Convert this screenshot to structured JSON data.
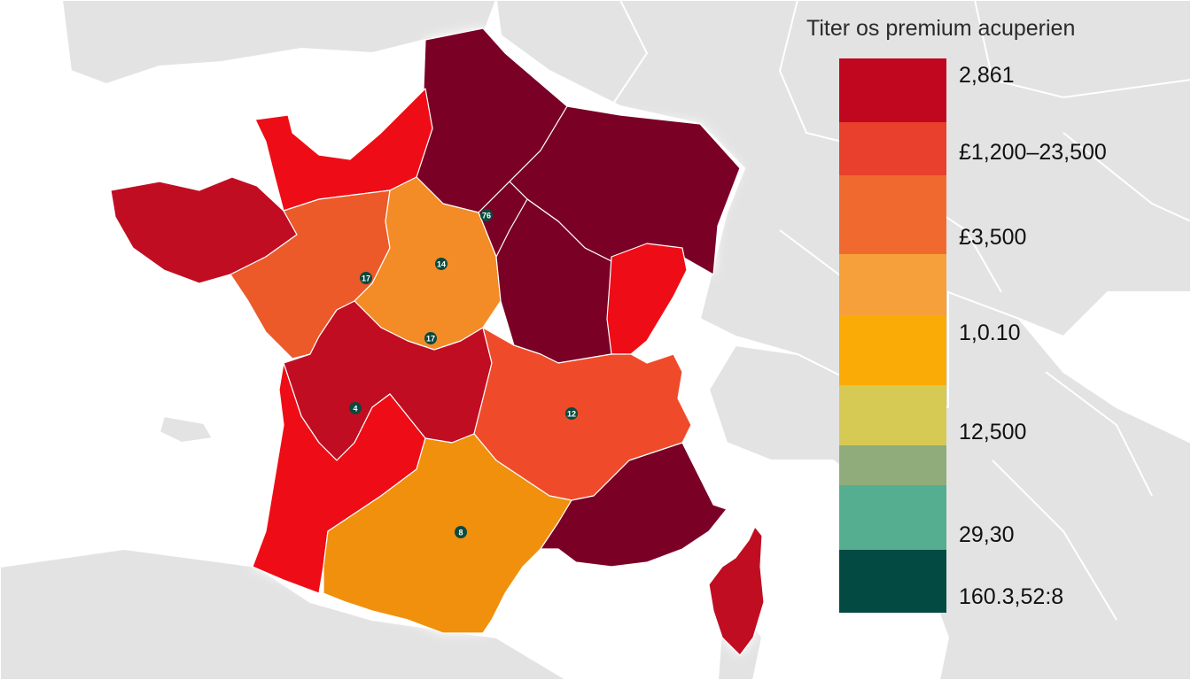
{
  "legend": {
    "title": "Titer os premium acuperien",
    "items": [
      {
        "label": "2,861",
        "color": "#c10720"
      },
      {
        "label": "£1,200–23,500",
        "color": "#e8402c"
      },
      {
        "label": "£3,500",
        "color": "#f06a30"
      },
      {
        "label": "",
        "color": "#f5a03a"
      },
      {
        "label": "1,0.10",
        "color": "#fbab05"
      },
      {
        "label": "12,500",
        "color": "#d6ca54"
      },
      {
        "label": "",
        "color": "#90ac7a"
      },
      {
        "label": "29,30",
        "color": "#55ae8f"
      },
      {
        "label": "160.3,52:8",
        "color": "#024a42"
      }
    ]
  },
  "regions": [
    {
      "name": "hauts-de-france",
      "color": "#7a0026"
    },
    {
      "name": "grand-est",
      "color": "#7a0026"
    },
    {
      "name": "normandie",
      "color": "#ee0f14"
    },
    {
      "name": "bretagne",
      "color": "#c10720"
    },
    {
      "name": "ile-de-france",
      "color": "#7a0026"
    },
    {
      "name": "pays-de-la-loire",
      "color": "#ec5a2c"
    },
    {
      "name": "centre-val-de-loire",
      "color": "#f38b28"
    },
    {
      "name": "bourgogne-franche-comte",
      "color": "#7a0026"
    },
    {
      "name": "franche-comte-strip",
      "color": "#ee0f14"
    },
    {
      "name": "nouvelle-aquitaine-north",
      "color": "#c10720"
    },
    {
      "name": "nouvelle-aquitaine-coast",
      "color": "#ee0f14"
    },
    {
      "name": "auvergne-rhone-alpes",
      "color": "#ef4b2a"
    },
    {
      "name": "occitanie",
      "color": "#f0900d"
    },
    {
      "name": "provence-alpes-cote-dazur",
      "color": "#7a0026"
    },
    {
      "name": "corse",
      "color": "#c10720"
    }
  ],
  "markers": [
    {
      "label": "76"
    },
    {
      "label": "14"
    },
    {
      "label": "17"
    },
    {
      "label": "17"
    },
    {
      "label": "4"
    },
    {
      "label": "12"
    },
    {
      "label": "8"
    }
  ]
}
